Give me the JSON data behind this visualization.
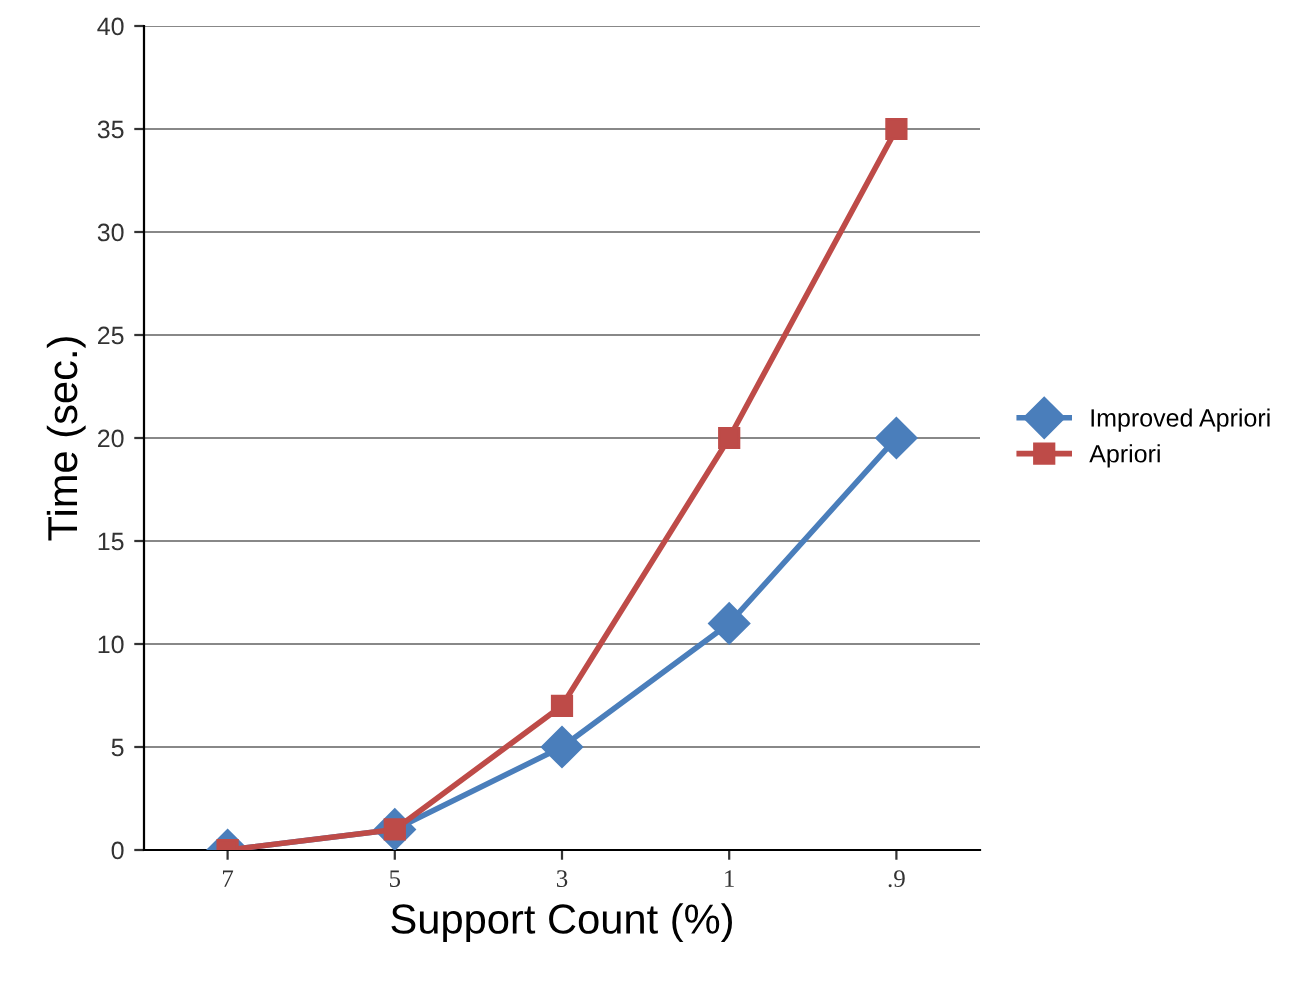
{
  "chart_data": {
    "type": "line",
    "xlabel": "Support Count (%)",
    "ylabel": "Time (sec.)",
    "categories": [
      "7",
      "5",
      "3",
      "1",
      ".9"
    ],
    "series": [
      {
        "name": "Improved Apriori",
        "color": "#4a7ebb",
        "marker": "diamond",
        "values": [
          0,
          1,
          5,
          11,
          20
        ]
      },
      {
        "name": "Apriori",
        "color": "#be4b48",
        "marker": "square",
        "values": [
          0,
          1,
          7,
          20,
          35
        ]
      }
    ],
    "ylim": [
      0,
      40
    ],
    "yticks": [
      0,
      5,
      10,
      15,
      20,
      25,
      30,
      35,
      40
    ],
    "grid": "y",
    "legend": "right",
    "line_style": "solid"
  }
}
